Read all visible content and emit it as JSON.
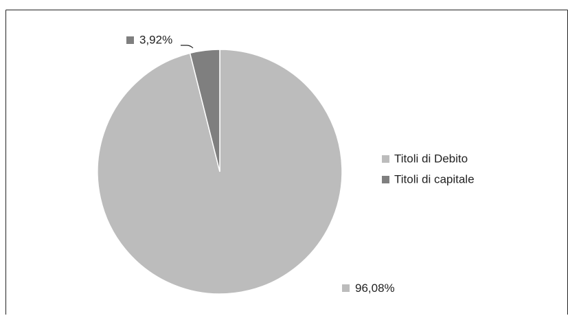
{
  "chart_data": {
    "type": "pie",
    "slices": [
      {
        "label": "Titoli di Debito",
        "value": 96.08,
        "value_label": "96,08%",
        "color": "#bcbcbc"
      },
      {
        "label": "Titoli di capitale",
        "value": 3.92,
        "value_label": "3,92%",
        "color": "#7f7f7f"
      }
    ],
    "legend_position": "right",
    "start_angle": "12 o'clock",
    "direction": "clockwise",
    "background": "#ffffff",
    "frame_color": "#222222"
  }
}
